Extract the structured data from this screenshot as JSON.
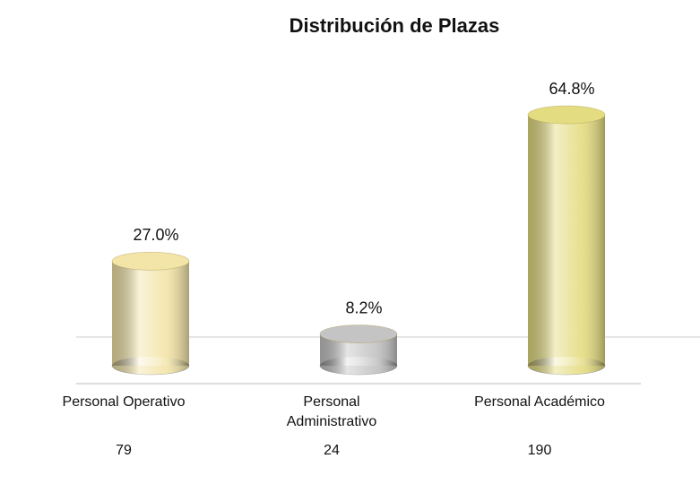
{
  "chart_data": {
    "type": "bar",
    "title": "Distribución de  Plazas",
    "categories": [
      "Personal Operativo",
      "Personal Administrativo",
      "Personal Académico"
    ],
    "values": [
      27.0,
      8.2,
      64.8
    ],
    "value_labels": [
      "27.0%",
      "8.2%",
      "64.8%"
    ],
    "counts": [
      79,
      24,
      190
    ],
    "colors": [
      "#f3e4a8",
      "#c4c4c4",
      "#e4dc80"
    ]
  }
}
